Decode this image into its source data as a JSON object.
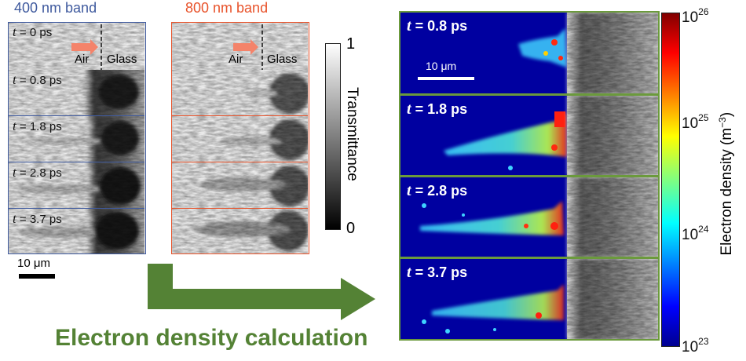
{
  "panels": {
    "band400": {
      "title": "400 nm band",
      "color": "#3f5a9e"
    },
    "band800": {
      "title": "800 nm band",
      "color": "#e8532b"
    },
    "frames": [
      {
        "time_var": "t",
        "eq": " = ",
        "time": "0 ps"
      },
      {
        "time_var": "t",
        "eq": " = ",
        "time": "0.8 ps"
      },
      {
        "time_var": "t",
        "eq": " = ",
        "time": "1.8 ps"
      },
      {
        "time_var": "t",
        "eq": " = ",
        "time": "2.8 ps"
      },
      {
        "time_var": "t",
        "eq": " = ",
        "time": "3.7 ps"
      }
    ],
    "interface": {
      "air": "Air",
      "glass": "Glass"
    },
    "scalebar": "10 μm"
  },
  "transmittance_bar": {
    "label": "Transmittance",
    "max": "1",
    "min": "0"
  },
  "electron_maps": {
    "border_color": "#6b9a3c",
    "scalebar": "10 μm",
    "frames": [
      {
        "time_var": "t",
        "eq": " = ",
        "time": "0.8 ps"
      },
      {
        "time_var": "t",
        "eq": " = ",
        "time": "1.8 ps"
      },
      {
        "time_var": "t",
        "eq": " = ",
        "time": "2.8 ps"
      },
      {
        "time_var": "t",
        "eq": " = ",
        "time": "3.7 ps"
      }
    ]
  },
  "colorbar": {
    "label": "Electron density (m",
    "label_exp": "−3",
    "label_close": ")",
    "ticks": [
      {
        "base": "10",
        "exp": "26"
      },
      {
        "base": "10",
        "exp": "25"
      },
      {
        "base": "10",
        "exp": "24"
      },
      {
        "base": "10",
        "exp": "23"
      }
    ]
  },
  "arrow": {
    "label": "Electron density calculation",
    "color": "#548235"
  }
}
